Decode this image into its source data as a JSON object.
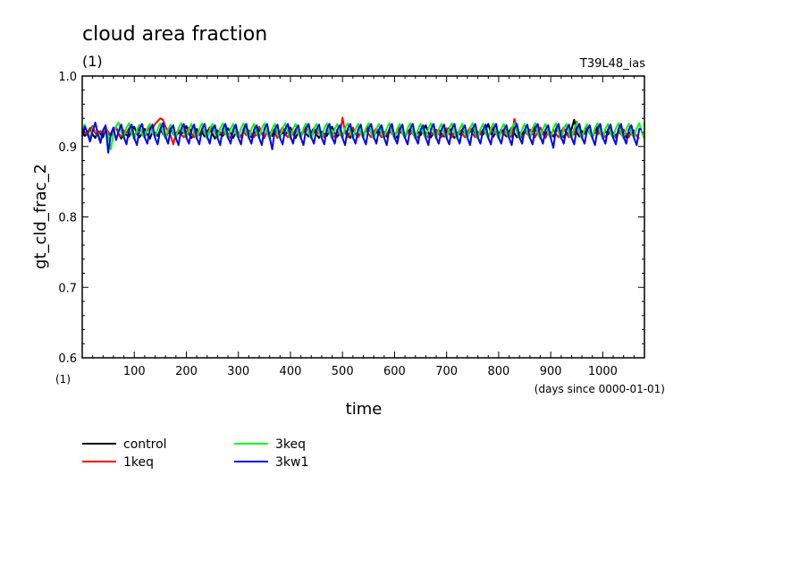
{
  "chart_data": {
    "type": "line",
    "title": "cloud area fraction",
    "units_label": "(1)",
    "model_label": "T39L48_ias",
    "ylabel": "gt_cld_frac_2",
    "y_units": "(1)",
    "xlabel": "time",
    "x_units": "(days since 0000-01-01)",
    "xlim": [
      0,
      1080
    ],
    "ylim": [
      0.6,
      1.0
    ],
    "x_ticks": [
      100,
      200,
      300,
      400,
      500,
      600,
      700,
      800,
      900,
      1000
    ],
    "y_ticks": [
      "0.6",
      "0.7",
      "0.8",
      "0.9",
      "1.0"
    ],
    "x_step_days": 5,
    "grid": false,
    "legend_position": "bottom-left",
    "series": [
      {
        "name": "control",
        "color": "#000000",
        "values": [
          0.921,
          0.915,
          0.919,
          0.926,
          0.917,
          0.912,
          0.922,
          0.918,
          0.913,
          0.925,
          0.919,
          0.915,
          0.921,
          0.927,
          0.918,
          0.911,
          0.92,
          0.916,
          0.914,
          0.923,
          0.928,
          0.918,
          0.913,
          0.919,
          0.925,
          0.917,
          0.911,
          0.921,
          0.919,
          0.915,
          0.924,
          0.918,
          0.912,
          0.92,
          0.926,
          0.917,
          0.914,
          0.92,
          0.917,
          0.922,
          0.929,
          0.918,
          0.912,
          0.919,
          0.925,
          0.916,
          0.92,
          0.914,
          0.921,
          0.927,
          0.918,
          0.911,
          0.923,
          0.917,
          0.915,
          0.92,
          0.926,
          0.919,
          0.912,
          0.92,
          0.918,
          0.914,
          0.922,
          0.928,
          0.917,
          0.913,
          0.921,
          0.916,
          0.924,
          0.919,
          0.912,
          0.922,
          0.917,
          0.915,
          0.925,
          0.918,
          0.914,
          0.92,
          0.916,
          0.922,
          0.927,
          0.918,
          0.912,
          0.921,
          0.917,
          0.923,
          0.918,
          0.914,
          0.92,
          0.926,
          0.917,
          0.912,
          0.921,
          0.918,
          0.915,
          0.922,
          0.928,
          0.919,
          0.914,
          0.92,
          0.916,
          0.923,
          0.918,
          0.912,
          0.924,
          0.918,
          0.915,
          0.92,
          0.917,
          0.922,
          0.929,
          0.919,
          0.913,
          0.921,
          0.917,
          0.924,
          0.918,
          0.914,
          0.92,
          0.926,
          0.917,
          0.912,
          0.922,
          0.918,
          0.915,
          0.92,
          0.925,
          0.918,
          0.913,
          0.921,
          0.916,
          0.923,
          0.93,
          0.919,
          0.913,
          0.92,
          0.917,
          0.924,
          0.918,
          0.914,
          0.921,
          0.927,
          0.918,
          0.912,
          0.92,
          0.917,
          0.923,
          0.918,
          0.915,
          0.921,
          0.926,
          0.918,
          0.913,
          0.922,
          0.917,
          0.924,
          0.932,
          0.919,
          0.914,
          0.921,
          0.917,
          0.925,
          0.918,
          0.914,
          0.921,
          0.927,
          0.919,
          0.913,
          0.92,
          0.917,
          0.923,
          0.919,
          0.914,
          0.921,
          0.928,
          0.918,
          0.913,
          0.921,
          0.917,
          0.924,
          0.919,
          0.914,
          0.921,
          0.926,
          0.918,
          0.913,
          0.92,
          0.917,
          0.925,
          0.938,
          0.92,
          0.914,
          0.922,
          0.918,
          0.925,
          0.919,
          0.913,
          0.921,
          0.928,
          0.918,
          0.914,
          0.922,
          0.917,
          0.924,
          0.919,
          0.915,
          0.921,
          0.927,
          0.918,
          0.913,
          0.92,
          0.917,
          0.924
        ]
      },
      {
        "name": "1keq",
        "color": "#ff0000",
        "values": [
          0.926,
          0.92,
          0.916,
          0.924,
          0.929,
          0.919,
          0.915,
          0.922,
          0.918,
          0.926,
          0.921,
          0.915,
          0.923,
          0.928,
          0.918,
          0.914,
          0.923,
          0.919,
          0.926,
          0.92,
          0.915,
          0.922,
          0.928,
          0.92,
          0.916,
          0.923,
          0.93,
          0.925,
          0.932,
          0.936,
          0.94,
          0.938,
          0.928,
          0.921,
          0.915,
          0.903,
          0.918,
          0.924,
          0.917,
          0.913,
          0.921,
          0.927,
          0.918,
          0.913,
          0.92,
          0.916,
          0.924,
          0.919,
          0.913,
          0.921,
          0.927,
          0.918,
          0.912,
          0.92,
          0.917,
          0.924,
          0.918,
          0.912,
          0.921,
          0.927,
          0.918,
          0.913,
          0.921,
          0.916,
          0.923,
          0.918,
          0.913,
          0.922,
          0.928,
          0.918,
          0.913,
          0.92,
          0.917,
          0.924,
          0.919,
          0.912,
          0.921,
          0.927,
          0.918,
          0.913,
          0.921,
          0.917,
          0.924,
          0.918,
          0.913,
          0.921,
          0.928,
          0.919,
          0.913,
          0.921,
          0.917,
          0.924,
          0.918,
          0.913,
          0.922,
          0.927,
          0.918,
          0.913,
          0.921,
          0.916,
          0.941,
          0.92,
          0.913,
          0.921,
          0.927,
          0.918,
          0.913,
          0.92,
          0.917,
          0.924,
          0.918,
          0.913,
          0.921,
          0.926,
          0.918,
          0.913,
          0.921,
          0.917,
          0.924,
          0.918,
          0.913,
          0.921,
          0.927,
          0.918,
          0.912,
          0.921,
          0.917,
          0.923,
          0.918,
          0.912,
          0.921,
          0.927,
          0.918,
          0.913,
          0.92,
          0.917,
          0.924,
          0.918,
          0.913,
          0.92,
          0.926,
          0.918,
          0.913,
          0.921,
          0.917,
          0.924,
          0.918,
          0.913,
          0.921,
          0.927,
          0.918,
          0.913,
          0.921,
          0.917,
          0.924,
          0.918,
          0.913,
          0.921,
          0.927,
          0.918,
          0.913,
          0.921,
          0.917,
          0.924,
          0.918,
          0.913,
          0.939,
          0.927,
          0.918,
          0.912,
          0.921,
          0.917,
          0.924,
          0.918,
          0.913,
          0.921,
          0.927,
          0.918,
          0.912,
          0.921,
          0.917,
          0.924,
          0.918,
          0.913,
          0.921,
          0.927,
          0.918,
          0.913,
          0.921,
          0.917,
          0.935,
          0.918,
          0.913,
          0.921,
          0.927,
          0.918,
          0.913,
          0.921,
          0.917,
          0.924,
          0.918,
          0.913,
          0.921,
          0.926,
          0.918,
          0.912,
          0.921,
          0.917,
          0.924,
          0.918,
          0.913,
          0.921,
          0.92,
          0.915,
          0.911
        ]
      },
      {
        "name": "3keq",
        "color": "#00ff00",
        "values": [
          0.925,
          0.931,
          0.919,
          0.914,
          0.926,
          0.932,
          0.92,
          0.908,
          0.921,
          0.928,
          0.915,
          0.896,
          0.918,
          0.929,
          0.934,
          0.92,
          0.913,
          0.927,
          0.933,
          0.918,
          0.91,
          0.924,
          0.931,
          0.917,
          0.912,
          0.926,
          0.932,
          0.919,
          0.913,
          0.925,
          0.933,
          0.92,
          0.911,
          0.924,
          0.931,
          0.918,
          0.912,
          0.926,
          0.933,
          0.92,
          0.912,
          0.925,
          0.932,
          0.918,
          0.911,
          0.925,
          0.933,
          0.92,
          0.911,
          0.925,
          0.932,
          0.918,
          0.912,
          0.926,
          0.933,
          0.919,
          0.911,
          0.925,
          0.932,
          0.918,
          0.912,
          0.926,
          0.933,
          0.92,
          0.911,
          0.925,
          0.932,
          0.918,
          0.912,
          0.926,
          0.933,
          0.919,
          0.911,
          0.925,
          0.932,
          0.918,
          0.912,
          0.926,
          0.933,
          0.92,
          0.911,
          0.925,
          0.932,
          0.918,
          0.912,
          0.926,
          0.933,
          0.919,
          0.911,
          0.925,
          0.932,
          0.918,
          0.912,
          0.926,
          0.933,
          0.919,
          0.911,
          0.925,
          0.932,
          0.918,
          0.912,
          0.926,
          0.933,
          0.92,
          0.911,
          0.925,
          0.932,
          0.918,
          0.912,
          0.926,
          0.933,
          0.919,
          0.911,
          0.925,
          0.932,
          0.918,
          0.912,
          0.926,
          0.933,
          0.92,
          0.911,
          0.925,
          0.932,
          0.918,
          0.912,
          0.926,
          0.933,
          0.919,
          0.911,
          0.925,
          0.932,
          0.918,
          0.912,
          0.926,
          0.933,
          0.92,
          0.911,
          0.925,
          0.932,
          0.918,
          0.912,
          0.926,
          0.933,
          0.919,
          0.911,
          0.925,
          0.932,
          0.918,
          0.912,
          0.926,
          0.933,
          0.92,
          0.911,
          0.925,
          0.932,
          0.918,
          0.912,
          0.926,
          0.933,
          0.919,
          0.911,
          0.925,
          0.932,
          0.918,
          0.912,
          0.926,
          0.933,
          0.92,
          0.911,
          0.925,
          0.932,
          0.918,
          0.912,
          0.926,
          0.933,
          0.919,
          0.911,
          0.925,
          0.932,
          0.918,
          0.912,
          0.926,
          0.933,
          0.92,
          0.911,
          0.925,
          0.932,
          0.918,
          0.912,
          0.926,
          0.933,
          0.919,
          0.911,
          0.925,
          0.932,
          0.918,
          0.912,
          0.926,
          0.933,
          0.92,
          0.911,
          0.925,
          0.932,
          0.918,
          0.912,
          0.926,
          0.933,
          0.919,
          0.911,
          0.925,
          0.932,
          0.918,
          0.912,
          0.926,
          0.933,
          0.92,
          0.911,
          0.925,
          0.932,
          0.935
        ]
      },
      {
        "name": "3kw1",
        "color": "#0000ff",
        "values": [
          0.914,
          0.928,
          0.919,
          0.907,
          0.921,
          0.934,
          0.917,
          0.905,
          0.923,
          0.93,
          0.891,
          0.918,
          0.927,
          0.909,
          0.922,
          0.931,
          0.913,
          0.903,
          0.924,
          0.931,
          0.912,
          0.902,
          0.925,
          0.932,
          0.913,
          0.904,
          0.924,
          0.931,
          0.912,
          0.903,
          0.925,
          0.933,
          0.914,
          0.904,
          0.924,
          0.93,
          0.912,
          0.902,
          0.925,
          0.932,
          0.913,
          0.904,
          0.924,
          0.931,
          0.912,
          0.903,
          0.925,
          0.932,
          0.914,
          0.904,
          0.924,
          0.93,
          0.912,
          0.902,
          0.925,
          0.932,
          0.913,
          0.904,
          0.924,
          0.931,
          0.912,
          0.903,
          0.925,
          0.932,
          0.913,
          0.904,
          0.924,
          0.93,
          0.912,
          0.902,
          0.925,
          0.932,
          0.913,
          0.896,
          0.924,
          0.931,
          0.912,
          0.903,
          0.925,
          0.932,
          0.914,
          0.904,
          0.924,
          0.93,
          0.912,
          0.902,
          0.925,
          0.932,
          0.913,
          0.904,
          0.924,
          0.931,
          0.912,
          0.903,
          0.925,
          0.932,
          0.913,
          0.904,
          0.924,
          0.93,
          0.912,
          0.902,
          0.925,
          0.932,
          0.913,
          0.904,
          0.924,
          0.931,
          0.912,
          0.903,
          0.925,
          0.932,
          0.914,
          0.904,
          0.924,
          0.93,
          0.912,
          0.902,
          0.925,
          0.932,
          0.913,
          0.904,
          0.924,
          0.931,
          0.912,
          0.903,
          0.925,
          0.932,
          0.913,
          0.904,
          0.924,
          0.93,
          0.912,
          0.902,
          0.925,
          0.932,
          0.913,
          0.904,
          0.924,
          0.931,
          0.912,
          0.903,
          0.925,
          0.932,
          0.914,
          0.904,
          0.924,
          0.93,
          0.912,
          0.902,
          0.925,
          0.932,
          0.913,
          0.904,
          0.924,
          0.931,
          0.912,
          0.903,
          0.925,
          0.932,
          0.913,
          0.904,
          0.924,
          0.93,
          0.912,
          0.902,
          0.925,
          0.932,
          0.913,
          0.904,
          0.924,
          0.931,
          0.912,
          0.903,
          0.925,
          0.932,
          0.914,
          0.904,
          0.924,
          0.93,
          0.912,
          0.898,
          0.925,
          0.932,
          0.913,
          0.904,
          0.924,
          0.931,
          0.912,
          0.903,
          0.925,
          0.932,
          0.913,
          0.904,
          0.924,
          0.93,
          0.912,
          0.902,
          0.925,
          0.932,
          0.913,
          0.904,
          0.924,
          0.931,
          0.912,
          0.903,
          0.925,
          0.932,
          0.914,
          0.904,
          0.924,
          0.93,
          0.912,
          0.902,
          0.925,
          0.924
        ]
      }
    ]
  }
}
